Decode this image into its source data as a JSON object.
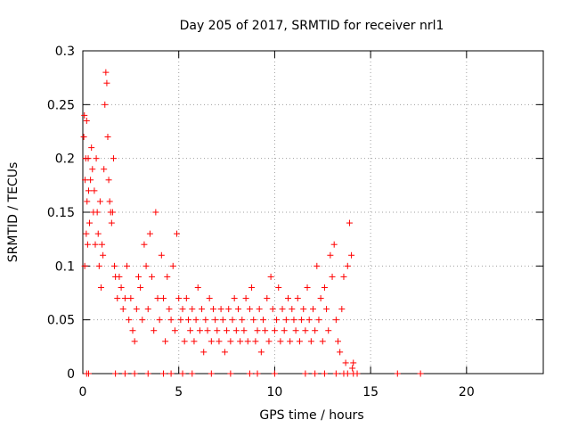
{
  "chart_data": {
    "type": "scatter",
    "title": "Day 205 of 2017, SRMTID for receiver nrl1",
    "xlabel": "GPS time / hours",
    "ylabel": "SRMTID / TECUs",
    "xlim": [
      0,
      24
    ],
    "ylim": [
      0,
      0.3
    ],
    "xticks": [
      0,
      5,
      10,
      15,
      20
    ],
    "yticks": [
      0,
      0.05,
      0.1,
      0.15,
      0.2,
      0.25,
      0.3
    ],
    "ytick_labels": [
      "0",
      "0.05",
      "0.1",
      "0.15",
      "0.2",
      "0.25",
      "0.3"
    ],
    "grid": true,
    "marker": "+",
    "color": "#ff0000",
    "series": [
      {
        "name": "SRMTID",
        "x": [
          0.05,
          0.08,
          0.1,
          0.12,
          0.15,
          0.18,
          0.2,
          0.22,
          0.25,
          0.28,
          0.3,
          0.35,
          0.4,
          0.45,
          0.5,
          0.55,
          0.6,
          0.65,
          0.7,
          0.75,
          0.8,
          0.85,
          0.9,
          0.95,
          1.0,
          1.05,
          1.1,
          1.15,
          1.2,
          1.25,
          1.3,
          1.35,
          1.4,
          1.45,
          1.5,
          1.55,
          1.6,
          1.65,
          1.7,
          1.8,
          1.9,
          2.0,
          2.1,
          2.2,
          2.3,
          2.4,
          2.5,
          2.6,
          2.7,
          2.8,
          2.9,
          3.0,
          3.1,
          3.2,
          3.3,
          3.4,
          3.5,
          3.6,
          3.7,
          3.8,
          3.9,
          4.0,
          4.1,
          4.2,
          4.3,
          4.4,
          4.5,
          4.6,
          4.7,
          4.8,
          4.9,
          5.0,
          5.1,
          5.2,
          5.3,
          5.4,
          5.5,
          5.6,
          5.7,
          5.8,
          5.9,
          6.0,
          6.1,
          6.2,
          6.3,
          6.4,
          6.5,
          6.6,
          6.7,
          6.8,
          6.9,
          7.0,
          7.1,
          7.2,
          7.3,
          7.4,
          7.5,
          7.6,
          7.7,
          7.8,
          7.9,
          8.0,
          8.1,
          8.2,
          8.3,
          8.4,
          8.5,
          8.6,
          8.7,
          8.8,
          8.9,
          9.0,
          9.1,
          9.2,
          9.3,
          9.4,
          9.5,
          9.6,
          9.7,
          9.8,
          9.9,
          10.0,
          10.1,
          10.2,
          10.3,
          10.4,
          10.5,
          10.6,
          10.7,
          10.8,
          10.9,
          11.0,
          11.1,
          11.2,
          11.3,
          11.4,
          11.5,
          11.6,
          11.7,
          11.8,
          11.9,
          12.0,
          12.1,
          12.2,
          12.3,
          12.4,
          12.5,
          12.6,
          12.7,
          12.8,
          12.9,
          13.0,
          13.1,
          13.2,
          13.3,
          13.4,
          13.5,
          13.6,
          13.7,
          13.8,
          13.9,
          14.0,
          14.05,
          14.1
        ],
        "y": [
          0.22,
          0.24,
          0.1,
          0.18,
          0.2,
          0.13,
          0.235,
          0.16,
          0.12,
          0.2,
          0.17,
          0.14,
          0.18,
          0.21,
          0.19,
          0.15,
          0.17,
          0.12,
          0.2,
          0.15,
          0.13,
          0.1,
          0.16,
          0.08,
          0.12,
          0.11,
          0.19,
          0.25,
          0.28,
          0.27,
          0.22,
          0.18,
          0.16,
          0.15,
          0.14,
          0.15,
          0.2,
          0.1,
          0.09,
          0.07,
          0.09,
          0.08,
          0.06,
          0.07,
          0.1,
          0.05,
          0.07,
          0.04,
          0.03,
          0.06,
          0.09,
          0.08,
          0.05,
          0.12,
          0.1,
          0.06,
          0.13,
          0.09,
          0.04,
          0.15,
          0.07,
          0.05,
          0.11,
          0.07,
          0.03,
          0.09,
          0.06,
          0.05,
          0.1,
          0.04,
          0.13,
          0.07,
          0.05,
          0.06,
          0.03,
          0.07,
          0.05,
          0.04,
          0.06,
          0.03,
          0.05,
          0.08,
          0.04,
          0.06,
          0.02,
          0.05,
          0.04,
          0.07,
          0.03,
          0.06,
          0.05,
          0.04,
          0.03,
          0.06,
          0.05,
          0.02,
          0.04,
          0.06,
          0.03,
          0.05,
          0.07,
          0.04,
          0.06,
          0.03,
          0.05,
          0.04,
          0.07,
          0.03,
          0.06,
          0.08,
          0.05,
          0.03,
          0.04,
          0.06,
          0.02,
          0.05,
          0.04,
          0.07,
          0.03,
          0.09,
          0.06,
          0.04,
          0.05,
          0.08,
          0.03,
          0.06,
          0.04,
          0.05,
          0.07,
          0.03,
          0.06,
          0.05,
          0.04,
          0.07,
          0.03,
          0.05,
          0.06,
          0.04,
          0.08,
          0.05,
          0.03,
          0.06,
          0.04,
          0.1,
          0.05,
          0.07,
          0.03,
          0.08,
          0.06,
          0.04,
          0.11,
          0.09,
          0.12,
          0.05,
          0.03,
          0.02,
          0.06,
          0.09,
          0.01,
          0.1,
          0.14,
          0.11,
          0.005,
          0.01
        ]
      }
    ],
    "zero_ticks_x": [
      0.2,
      0.3,
      1.7,
      2.2,
      2.7,
      3.4,
      4.2,
      4.6,
      5.2,
      5.7,
      6.7,
      7.7,
      8.7,
      9.1,
      10.0,
      11.6,
      12.1,
      12.6,
      13.2,
      13.6,
      13.8,
      14.1,
      14.3,
      16.4,
      17.6
    ]
  }
}
